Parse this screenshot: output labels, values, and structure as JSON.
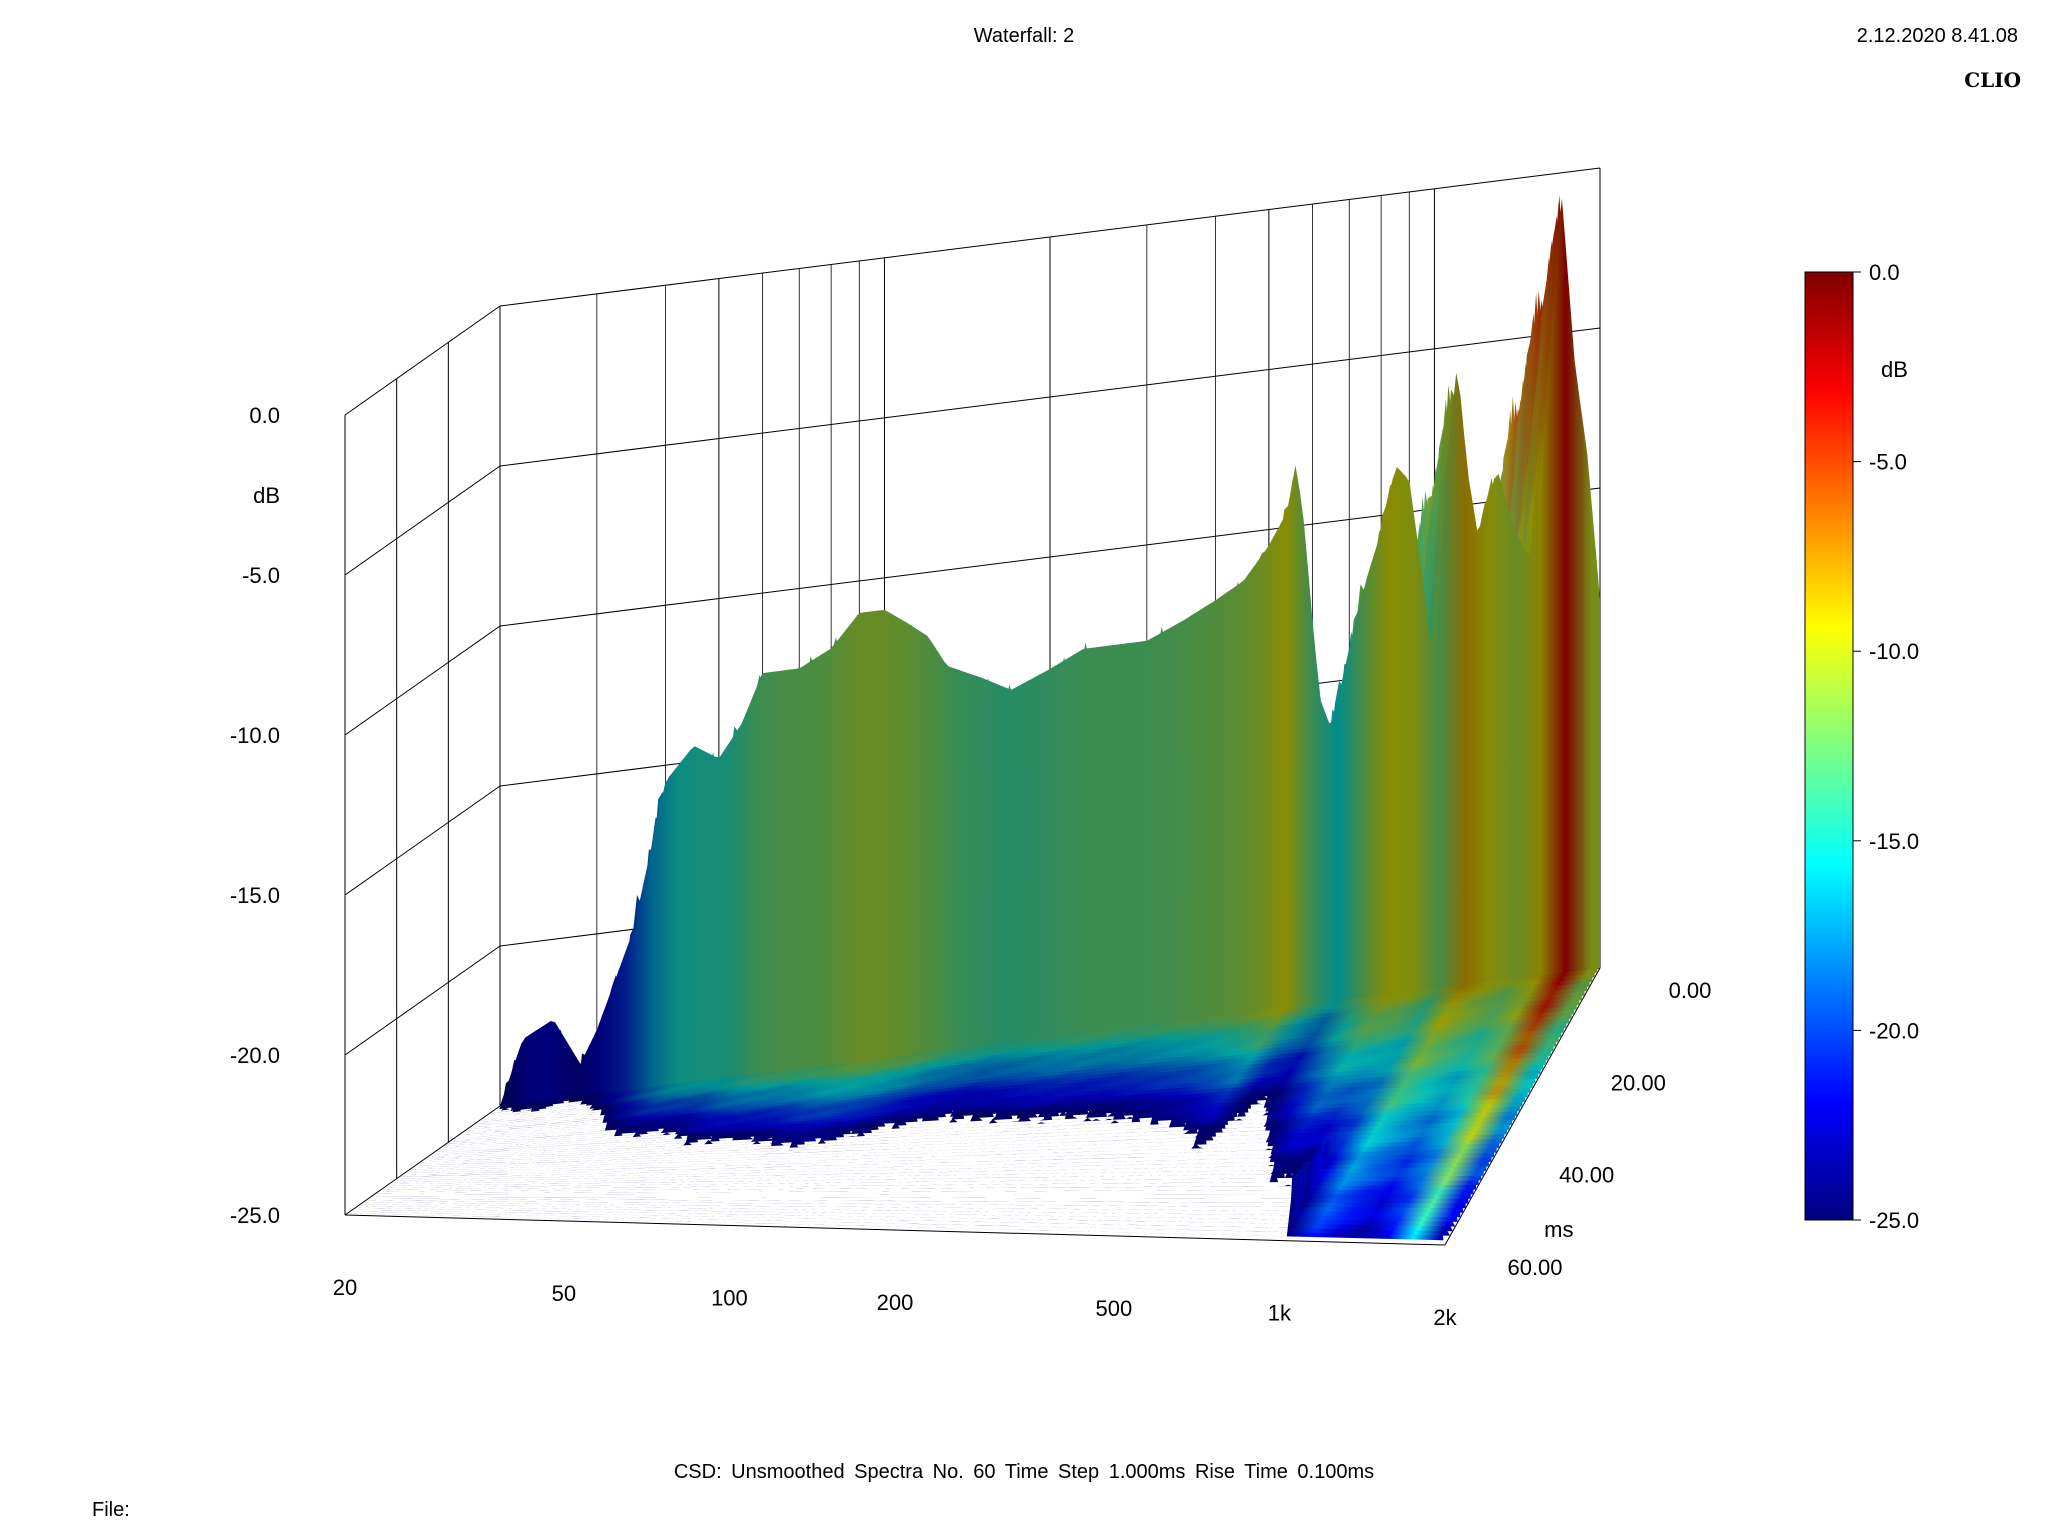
{
  "header": {
    "title": "Waterfall: 2",
    "timestamp": "2.12.2020 8.41.08",
    "brand": "CLIO"
  },
  "footer": {
    "info": "CSD:   Unsmoothed   Spectra No. 60   Time Step 1.000ms   Rise Time 0.100ms",
    "file_label": "File:"
  },
  "colors": {
    "scale": [
      "#00007f",
      "#0000ff",
      "#007fff",
      "#00ffff",
      "#7fff7f",
      "#ffff00",
      "#ff7f00",
      "#ff0000",
      "#7f0000"
    ]
  },
  "chart_data": {
    "type": "waterfall",
    "title": "Waterfall: 2",
    "x_axis": {
      "scale": "log",
      "range": [
        20,
        2000
      ],
      "ticks": [
        20,
        50,
        100,
        200,
        500,
        1000,
        2000
      ],
      "tick_labels": [
        "20",
        "50",
        "100",
        "200",
        "500",
        "1k",
        "2k"
      ]
    },
    "y_axis": {
      "label": "dB",
      "range": [
        -25,
        0
      ],
      "ticks": [
        0,
        -5,
        -10,
        -15,
        -20,
        -25
      ],
      "tick_labels": [
        "0.0",
        "-5.0",
        "-10.0",
        "-15.0",
        "-20.0",
        "-25.0"
      ]
    },
    "z_axis": {
      "label": "ms",
      "range": [
        0,
        60
      ],
      "ticks": [
        0,
        20,
        40,
        60
      ],
      "tick_labels": [
        "0.00",
        "20.00",
        "40.00",
        "60.00"
      ]
    },
    "colorbar": {
      "label": "dB",
      "range": [
        -25,
        0
      ],
      "ticks": [
        0,
        -5,
        -10,
        -15,
        -20,
        -25
      ],
      "tick_labels": [
        "0.0",
        "-5.0",
        "-10.0",
        "-15.0",
        "-20.0",
        "-25.0"
      ]
    },
    "spectra_count": 60,
    "time_step_ms": 1.0,
    "rise_time_ms": 0.1,
    "front_spectrum": {
      "freq_hz": [
        20,
        22,
        25,
        28,
        30,
        35,
        40,
        45,
        50,
        55,
        60,
        70,
        80,
        90,
        100,
        110,
        120,
        130,
        150,
        170,
        200,
        230,
        260,
        300,
        350,
        400,
        450,
        500,
        540,
        560,
        580,
        600,
        620,
        650,
        700,
        750,
        800,
        850,
        900,
        950,
        1000,
        1050,
        1100,
        1150,
        1200,
        1300,
        1400,
        1500,
        1600,
        1700,
        1800,
        1900,
        2000
      ],
      "db": [
        -25,
        -23,
        -22.5,
        -24,
        -23,
        -20,
        -15.5,
        -14.5,
        -15,
        -14,
        -12.5,
        -12.5,
        -12,
        -11,
        -11,
        -11.5,
        -12,
        -13,
        -13.5,
        -14,
        -13.5,
        -13,
        -13,
        -13,
        -12.5,
        -12,
        -11.5,
        -10.5,
        -9.5,
        -8,
        -10,
        -13,
        -15.5,
        -16.5,
        -14,
        -12,
        -10.5,
        -8.5,
        -9,
        -12,
        -15,
        -9,
        -5.5,
        -9,
        -11,
        -9,
        -11,
        -12,
        -7,
        -0.5,
        -6,
        -9,
        -13.5
      ]
    }
  }
}
